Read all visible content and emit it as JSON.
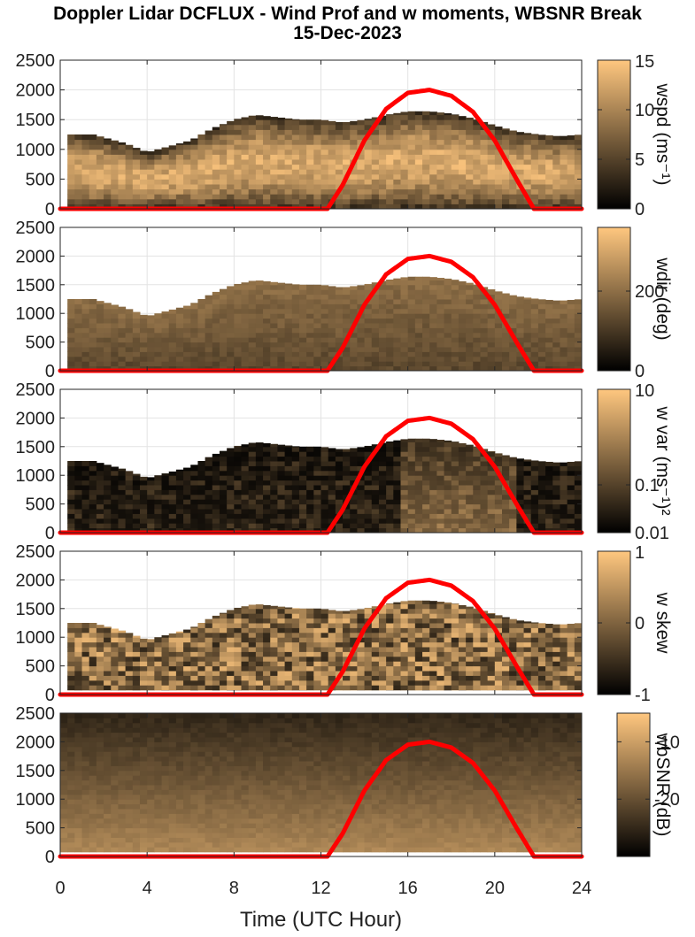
{
  "title_line1": "Doppler Lidar DCFLUX - Wind Prof and w moments, WBSNR Break",
  "title_line2": "15-Dec-2023",
  "chart_data": {
    "type": "heatmap",
    "xlabel": "Time (UTC Hour)",
    "xlim": [
      0,
      24
    ],
    "x_ticks": [
      "0",
      "4",
      "8",
      "12",
      "16",
      "20",
      "24"
    ],
    "ylim": [
      0,
      2500
    ],
    "y_ticks": [
      "0",
      "500",
      "1000",
      "1500",
      "2000",
      "2500"
    ],
    "colormap": [
      "#000000",
      "#ffc77f"
    ],
    "overlay_color": "#ff0000",
    "top_hour": [
      0,
      0.5,
      1,
      1.5,
      2,
      3,
      4,
      5,
      6,
      7,
      8,
      9,
      10,
      11,
      12,
      13,
      14,
      15,
      16,
      17,
      18,
      19,
      20,
      21,
      22,
      23,
      24
    ],
    "top_height": [
      1250,
      1250,
      1250,
      1250,
      1200,
      1100,
      950,
      1050,
      1150,
      1350,
      1500,
      1580,
      1540,
      1500,
      1500,
      1450,
      1500,
      1580,
      1640,
      1640,
      1600,
      1520,
      1400,
      1300,
      1250,
      1220,
      1250
    ],
    "overlay": {
      "hours": [
        0,
        12.3,
        13,
        14,
        15,
        16,
        17,
        18,
        19,
        20,
        21,
        21.8,
        24
      ],
      "values": [
        0,
        0,
        400,
        1150,
        1680,
        1950,
        2000,
        1900,
        1630,
        1150,
        500,
        0,
        0
      ]
    },
    "panels": [
      {
        "colorbar_label": "wspd (ms⁻¹)",
        "cb_ticks": [
          "0",
          "5",
          "10",
          "15"
        ],
        "cb_range": [
          0,
          15
        ],
        "kind": "wspd"
      },
      {
        "colorbar_label": "wdir (deg)",
        "cb_ticks": [
          "0",
          "200"
        ],
        "cb_range": [
          0,
          360
        ],
        "kind": "wdir"
      },
      {
        "colorbar_label": "w var (ms⁻¹)²",
        "cb_ticks": [
          "0.01",
          "0.1",
          "10"
        ],
        "cb_range": [
          0.01,
          10
        ],
        "kind": "wvar"
      },
      {
        "colorbar_label": "w skew",
        "cb_ticks": [
          "-1",
          "0",
          "1"
        ],
        "cb_range": [
          -1,
          1
        ],
        "kind": "wskew"
      },
      {
        "colorbar_label": "wbSNR (dB)",
        "cb_ticks": [
          "-20",
          "-10"
        ],
        "cb_range": [
          -30,
          -5
        ],
        "kind": "snr"
      }
    ]
  }
}
